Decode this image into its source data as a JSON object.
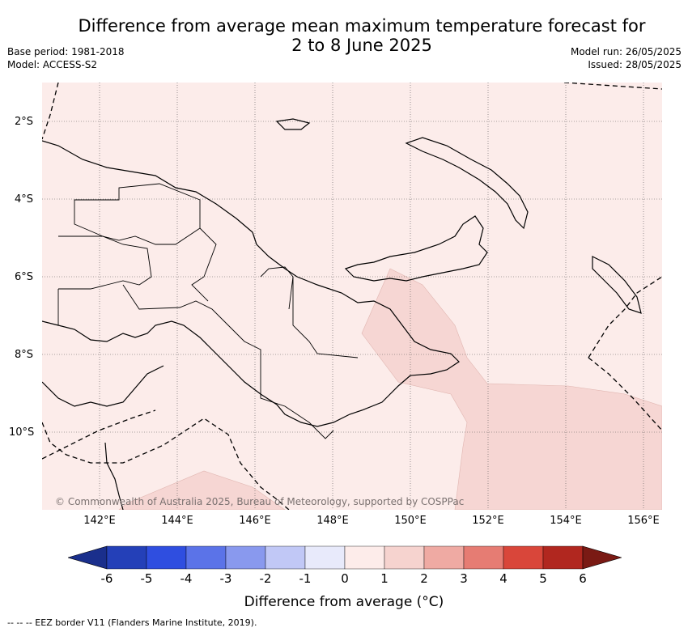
{
  "title": {
    "line1": "Difference from average mean maximum temperature forecast for",
    "line2": "2 to 8 June 2025"
  },
  "meta": {
    "base_period": "Base period: 1981-2018",
    "model": "Model: ACCESS-S2",
    "model_run": "Model run: 26/05/2025",
    "issued": "Issued: 28/05/2025"
  },
  "axes": {
    "lat_labels": [
      "2°S",
      "4°S",
      "6°S",
      "8°S",
      "10°S"
    ],
    "lon_labels": [
      "142°E",
      "144°E",
      "146°E",
      "148°E",
      "150°E",
      "152°E",
      "154°E",
      "156°E"
    ]
  },
  "copyright": "© Commonwealth of Australia 2025, Bureau of Meteorology, supported by COSPPac",
  "colorbar": {
    "title": "Difference from average (°C)",
    "ticks": [
      "-6",
      "-5",
      "-4",
      "-3",
      "-2",
      "-1",
      "0",
      "1",
      "2",
      "3",
      "4",
      "5",
      "6"
    ],
    "colors": [
      "#1a2f8c",
      "#2440b8",
      "#2f4ee0",
      "#5b73e8",
      "#8999ee",
      "#c1c8f6",
      "#e8eafb",
      "#fdecea",
      "#f6d3cf",
      "#efaaa3",
      "#e67c73",
      "#d9463a",
      "#b1271f",
      "#7a1a14"
    ]
  },
  "map_data": {
    "region": "Papua New Guinea",
    "category_shown": "0 to 1 °C above average (most of region)",
    "secondary_category": "1 to 2 °C above average (south-east, around 150°E–156°E, 6°S–11°S)"
  },
  "footer": "--  --  -- EEZ border V11 (Flanders Marine Institute, 2019)."
}
